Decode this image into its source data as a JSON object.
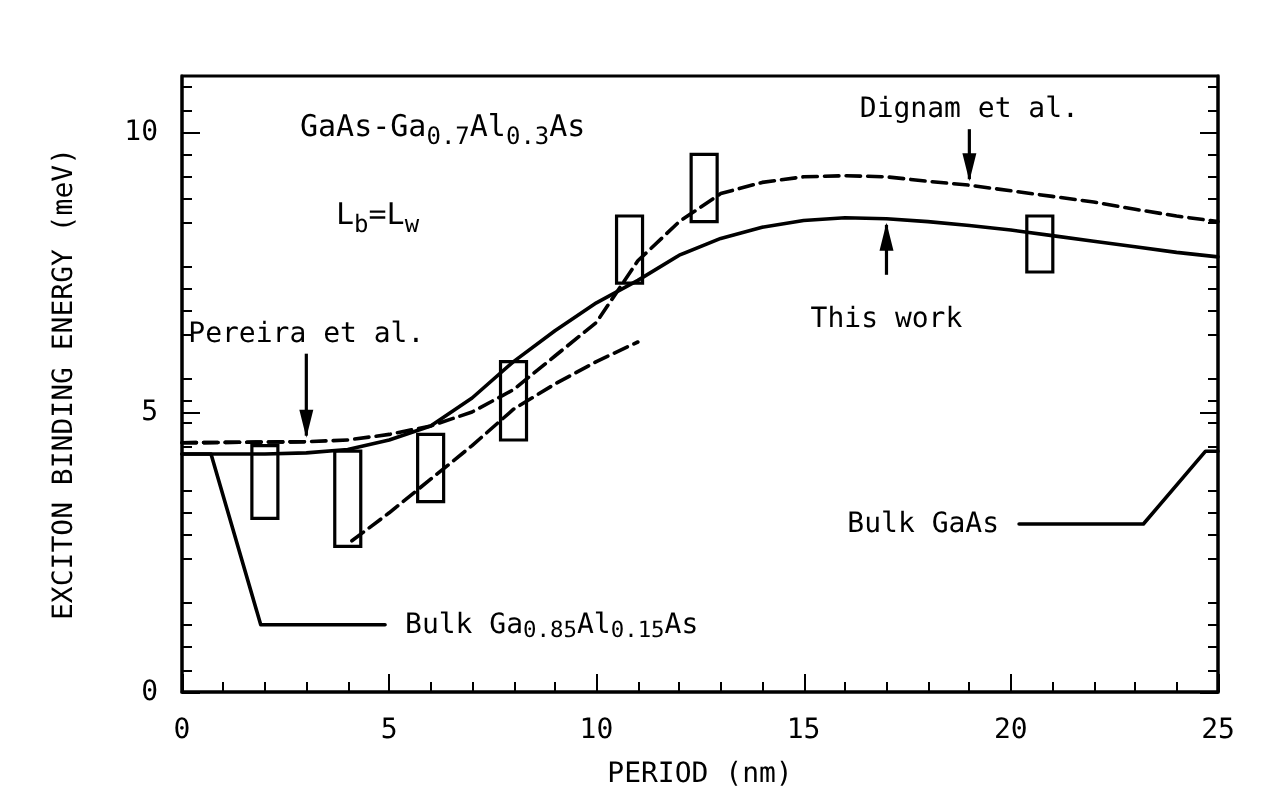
{
  "chart_data": {
    "type": "line",
    "xlabel": "PERIOD (nm)",
    "ylabel": "EXCITON BINDING ENERGY (meV)",
    "xlim": [
      0,
      25
    ],
    "xticks": [
      0,
      5,
      10,
      15,
      20,
      25
    ],
    "ylim": [
      0,
      11
    ],
    "yticks": [
      0,
      5,
      10
    ],
    "grid": false,
    "marker": "none",
    "annotations": [
      "GaAs-Ga$_{0.7}$Al$_{0.3}$As",
      "L$_{b}$=L$_{w}$"
    ],
    "series": [
      {
        "name": "This work",
        "color": "#000000",
        "line_style": "solid",
        "x": [
          0,
          2,
          3,
          4,
          5,
          6,
          7,
          8,
          9,
          10,
          11,
          12,
          13,
          14,
          15,
          16,
          17,
          18,
          19,
          20,
          21,
          22,
          23,
          24,
          25
        ],
        "values": [
          4.25,
          4.25,
          4.27,
          4.33,
          4.5,
          4.75,
          5.25,
          5.9,
          6.45,
          6.95,
          7.35,
          7.8,
          8.1,
          8.3,
          8.42,
          8.47,
          8.45,
          8.4,
          8.33,
          8.25,
          8.15,
          8.05,
          7.95,
          7.85,
          7.77
        ]
      },
      {
        "name": "Dignam et al.",
        "color": "#000000",
        "line_style": "dashed",
        "x": [
          0,
          3,
          4,
          5,
          6,
          7,
          8,
          9,
          10,
          11,
          12,
          13,
          14,
          15,
          16,
          17,
          18,
          19,
          20,
          21,
          22,
          23,
          24,
          25
        ],
        "values": [
          4.45,
          4.47,
          4.5,
          4.6,
          4.75,
          5.0,
          5.4,
          6.0,
          6.6,
          7.7,
          8.4,
          8.9,
          9.1,
          9.2,
          9.22,
          9.2,
          9.12,
          9.05,
          8.95,
          8.85,
          8.75,
          8.62,
          8.5,
          8.4
        ]
      },
      {
        "name": "Pereira et al.",
        "color": "#000000",
        "line_style": "dashed",
        "x": [
          0,
          3,
          3.5,
          4.1,
          5,
          6,
          7,
          8,
          9,
          10,
          11
        ],
        "values": [
          4.45,
          4.47,
          null,
          2.7,
          3.2,
          3.8,
          4.4,
          5.05,
          5.5,
          5.9,
          6.25
        ]
      },
      {
        "name": "Bulk Ga$_{0.85}$Al$_{0.15}$As",
        "color": "#000000",
        "line_style": "solid",
        "x": [
          0,
          0.7,
          1.9,
          4.9
        ],
        "values": [
          4.25,
          4.25,
          1.2,
          1.2
        ]
      },
      {
        "name": "Bulk GaAs",
        "color": "#000000",
        "line_style": "solid",
        "x": [
          20.2,
          23.2,
          24.7,
          25
        ],
        "values": [
          3.0,
          3.0,
          4.3,
          4.3
        ]
      },
      {
        "type": "bar",
        "color": "#000000",
        "x": [
          2,
          4,
          6,
          8,
          10.8,
          12.6,
          20.7
        ],
        "base": [
          3.1,
          2.6,
          3.4,
          4.5,
          7.3,
          8.4,
          7.5
        ],
        "values": [
          1.3,
          1.7,
          1.2,
          1.4,
          1.2,
          1.2,
          1.0
        ]
      }
    ]
  }
}
